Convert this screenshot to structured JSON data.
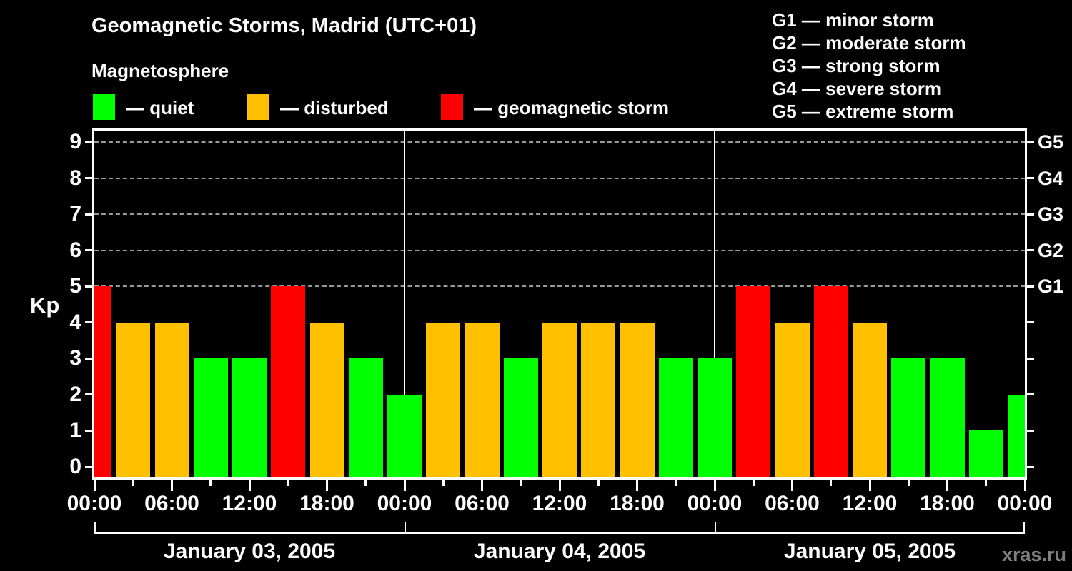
{
  "header": {
    "title": "Geomagnetic Storms, Madrid (UTC+01)",
    "subtitle": "Magnetosphere"
  },
  "watermark": "xras.ru",
  "g_scale_legend": [
    {
      "code": "G1",
      "desc": "minor storm"
    },
    {
      "code": "G2",
      "desc": "moderate storm"
    },
    {
      "code": "G3",
      "desc": "strong storm"
    },
    {
      "code": "G4",
      "desc": "severe storm"
    },
    {
      "code": "G5",
      "desc": "extreme storm"
    }
  ],
  "chart_data": {
    "type": "bar",
    "title": "Geomagnetic Storms, Madrid (UTC+01)",
    "subtitle": "Magnetosphere",
    "ylabel": "Kp",
    "ylim": [
      0,
      9.3
    ],
    "y_ticks": [
      0,
      1,
      2,
      3,
      4,
      5,
      6,
      7,
      8,
      9
    ],
    "gridlines_at_kp": [
      5,
      6,
      7,
      8,
      9
    ],
    "grid": "dashed horizontal lines at G-storm levels only",
    "legend": [
      {
        "label": "quiet",
        "color": "#00ff00"
      },
      {
        "label": "disturbed",
        "color": "#ffc000"
      },
      {
        "label": "geomagnetic storm",
        "color": "#ff0000"
      }
    ],
    "right_axis_labels": [
      {
        "label": "G5",
        "kp": 9
      },
      {
        "label": "G4",
        "kp": 8
      },
      {
        "label": "G3",
        "kp": 7
      },
      {
        "label": "G2",
        "kp": 6
      },
      {
        "label": "G1",
        "kp": 5
      }
    ],
    "x_axis": {
      "tick_interval_hours": 3,
      "label_interval_hours": 6,
      "labels": [
        "00:00",
        "06:00",
        "12:00",
        "18:00",
        "00:00",
        "06:00",
        "12:00",
        "18:00",
        "00:00",
        "06:00",
        "12:00",
        "18:00",
        "00:00"
      ]
    },
    "days": [
      {
        "date": "January 03, 2005",
        "kp_3h": [
          5,
          4,
          4,
          3,
          3,
          5,
          4,
          3
        ]
      },
      {
        "date": "January 04, 2005",
        "kp_3h": [
          2,
          4,
          4,
          3,
          4,
          4,
          4,
          3
        ]
      },
      {
        "date": "January 05, 2005",
        "kp_3h": [
          3,
          5,
          4,
          5,
          4,
          3,
          3,
          1
        ]
      }
    ],
    "trailing_half_bar_kp": 2,
    "bar_positioning": "bars centered on 3-hour ticks; first and last bars half-clipped at plot edges",
    "colors": {
      "quiet": "#00ff00",
      "disturbed": "#ffc000",
      "storm": "#ff0000",
      "background": "#000000",
      "axis": "#ffffff",
      "gridline": "#999999",
      "day_separator": "#ffffff",
      "watermark": "#7f7f7f"
    },
    "color_rule": {
      "quiet": "kp <= 3",
      "disturbed": "kp == 4",
      "storm": "kp >= 5"
    }
  }
}
